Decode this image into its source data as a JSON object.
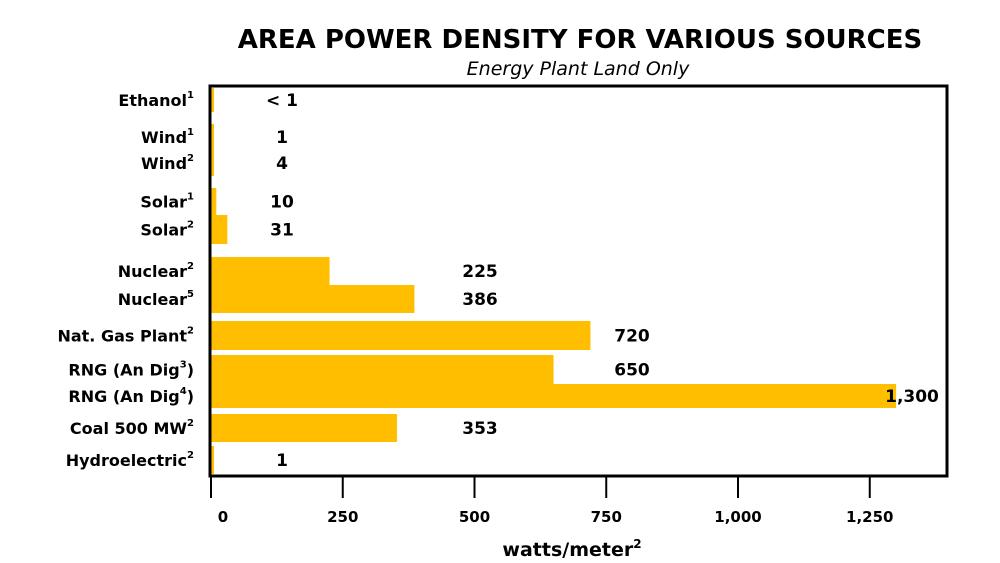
{
  "chart_data": {
    "type": "bar",
    "orientation": "horizontal",
    "title": "AREA POWER DENSITY FOR VARIOUS SOURCES",
    "subtitle": "Energy Plant Land Only",
    "xlabel": "watts/meter",
    "xlabel_sup": "2",
    "ylabel": "",
    "xlim": [
      0,
      1480
    ],
    "x_ticks": [
      0,
      250,
      500,
      750,
      1000,
      1250
    ],
    "x_tick_labels": [
      "0",
      "250",
      "500",
      "750",
      "1,000",
      "1,250"
    ],
    "grid": false,
    "bar_color": "#FFBF00",
    "categories": [
      {
        "label": "Ethanol",
        "sup": "1",
        "value": 1,
        "value_label": "< 1"
      },
      {
        "label": "Wind",
        "sup": "1",
        "value": 1,
        "value_label": "1"
      },
      {
        "label": "Wind",
        "sup": "2",
        "value": 4,
        "value_label": "4"
      },
      {
        "label": "Solar",
        "sup": "1",
        "value": 10,
        "value_label": "10"
      },
      {
        "label": "Solar",
        "sup": "2",
        "value": 31,
        "value_label": "31"
      },
      {
        "label": "Nuclear",
        "sup": "2",
        "value": 225,
        "value_label": "225"
      },
      {
        "label": "Nuclear",
        "sup": "5",
        "value": 386,
        "value_label": "386"
      },
      {
        "label": "Nat. Gas Plant",
        "sup": "2",
        "value": 720,
        "value_label": "720"
      },
      {
        "label": "RNG (An Dig",
        "sup": "3",
        "suffix": ")",
        "value": 650,
        "value_label": "650"
      },
      {
        "label": "RNG (An Dig",
        "sup": "4",
        "suffix": ")",
        "value": 1300,
        "value_label": "1,300"
      },
      {
        "label": "Coal 500 MW",
        "sup": "2",
        "value": 353,
        "value_label": "353"
      },
      {
        "label": "Hydroelectric",
        "sup": "2",
        "value": 1,
        "value_label": "1"
      }
    ]
  }
}
